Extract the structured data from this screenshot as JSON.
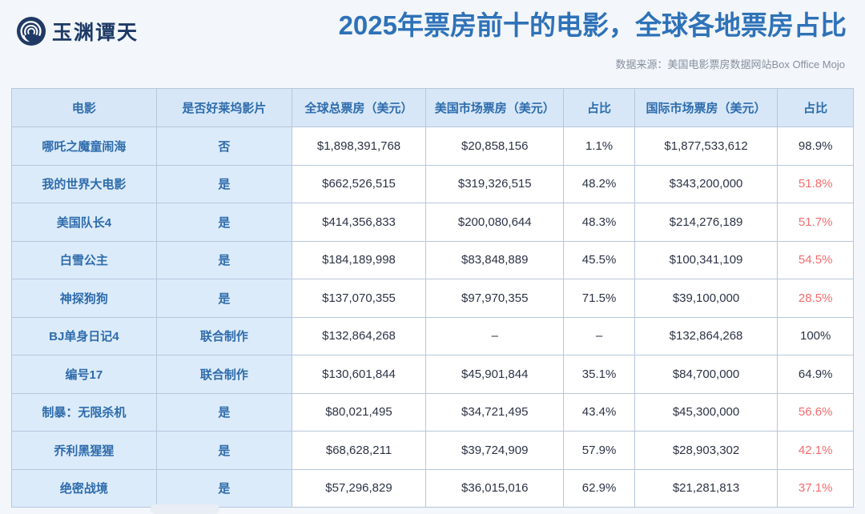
{
  "header": {
    "logo_text": "玉渊谭天"
  },
  "colors": {
    "accent_blue": "#2e72b8",
    "table_blue_text": "#2e6cac",
    "red_percent": "#f56c6c",
    "header_bg": "#d7e7f7",
    "label_cell_bg": "#dcebfa",
    "border": "#b7c7db",
    "page_bg": "#f3f6fa",
    "dark_text": "#2b3345"
  },
  "chart_data": {
    "type": "table",
    "title": "2025年票房前十的电影，全球各地票房占比",
    "source_note": "数据来源：美国电影票房数据网站Box Office Mojo",
    "columns": [
      {
        "key": "movie",
        "label": "电影"
      },
      {
        "key": "hollywood",
        "label": "是否好莱坞影片"
      },
      {
        "key": "global",
        "label": "全球总票房（美元）"
      },
      {
        "key": "us",
        "label": "美国市场票房（美元）"
      },
      {
        "key": "us_pct",
        "label": "占比"
      },
      {
        "key": "intl",
        "label": "国际市场票房（美元）"
      },
      {
        "key": "intl_pct",
        "label": "占比"
      }
    ],
    "rows": [
      {
        "movie": "哪吒之魔童闹海",
        "hollywood": "否",
        "global": "$1,898,391,768",
        "us": "$20,858,156",
        "us_pct": "1.1%",
        "intl": "$1,877,533,612",
        "intl_pct": "98.9%",
        "intl_pct_red": false
      },
      {
        "movie": "我的世界大电影",
        "hollywood": "是",
        "global": "$662,526,515",
        "us": "$319,326,515",
        "us_pct": "48.2%",
        "intl": "$343,200,000",
        "intl_pct": "51.8%",
        "intl_pct_red": true
      },
      {
        "movie": "美国队长4",
        "hollywood": "是",
        "global": "$414,356,833",
        "us": "$200,080,644",
        "us_pct": "48.3%",
        "intl": "$214,276,189",
        "intl_pct": "51.7%",
        "intl_pct_red": true
      },
      {
        "movie": "白雪公主",
        "hollywood": "是",
        "global": "$184,189,998",
        "us": "$83,848,889",
        "us_pct": "45.5%",
        "intl": "$100,341,109",
        "intl_pct": "54.5%",
        "intl_pct_red": true
      },
      {
        "movie": "神探狗狗",
        "hollywood": "是",
        "global": "$137,070,355",
        "us": "$97,970,355",
        "us_pct": "71.5%",
        "intl": "$39,100,000",
        "intl_pct": "28.5%",
        "intl_pct_red": true
      },
      {
        "movie": "BJ单身日记4",
        "hollywood": "联合制作",
        "global": "$132,864,268",
        "us": "–",
        "us_pct": "–",
        "intl": "$132,864,268",
        "intl_pct": "100%",
        "intl_pct_red": false
      },
      {
        "movie": "编号17",
        "hollywood": "联合制作",
        "global": "$130,601,844",
        "us": "$45,901,844",
        "us_pct": "35.1%",
        "intl": "$84,700,000",
        "intl_pct": "64.9%",
        "intl_pct_red": false
      },
      {
        "movie": "制暴：无限杀机",
        "hollywood": "是",
        "global": "$80,021,495",
        "us": "$34,721,495",
        "us_pct": "43.4%",
        "intl": "$45,300,000",
        "intl_pct": "56.6%",
        "intl_pct_red": true
      },
      {
        "movie": "乔利黑猩猩",
        "hollywood": "是",
        "global": "$68,628,211",
        "us": "$39,724,909",
        "us_pct": "57.9%",
        "intl": "$28,903,302",
        "intl_pct": "42.1%",
        "intl_pct_red": true
      },
      {
        "movie": "绝密战境",
        "hollywood": "是",
        "global": "$57,296,829",
        "us": "$36,015,016",
        "us_pct": "62.9%",
        "intl": "$21,281,813",
        "intl_pct": "37.1%",
        "intl_pct_red": true
      }
    ]
  }
}
